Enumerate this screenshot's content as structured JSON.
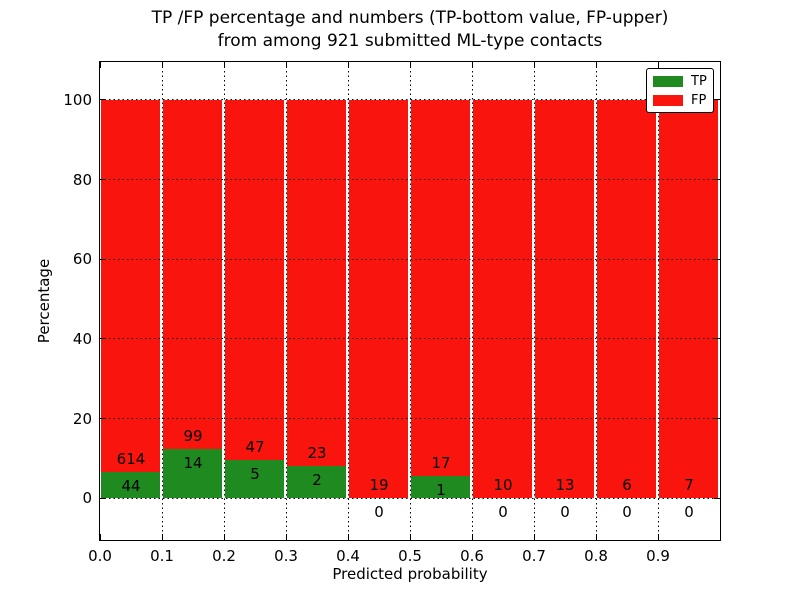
{
  "title": {
    "line1": "TP /FP percentage and numbers (TP-bottom value, FP-upper)",
    "line2": "from among 921 submitted ML-type contacts"
  },
  "chart_data": {
    "type": "bar",
    "stacked": true,
    "normalized_to_percent": true,
    "title": "TP /FP percentage and numbers (TP-bottom value, FP-upper) from among 921 submitted ML-type contacts",
    "xlabel": "Predicted probability",
    "ylabel": "Percentage",
    "total_contacts": 921,
    "bin_width": 0.1,
    "bin_starts": [
      0.0,
      0.1,
      0.2,
      0.3,
      0.4,
      0.5,
      0.6,
      0.7,
      0.8,
      0.9
    ],
    "series": [
      {
        "name": "TP",
        "color": "#1f8a1f",
        "values": [
          44,
          14,
          5,
          2,
          0,
          1,
          0,
          0,
          0,
          0
        ]
      },
      {
        "name": "FP",
        "color": "#fa140e",
        "values": [
          614,
          99,
          47,
          23,
          19,
          17,
          10,
          13,
          6,
          7
        ]
      }
    ],
    "bar_label_note": "TP count printed low in each bar, FP count printed above it",
    "xticks": [
      "0.0",
      "0.1",
      "0.2",
      "0.3",
      "0.4",
      "0.5",
      "0.6",
      "0.7",
      "0.8",
      "0.9"
    ],
    "yticks": [
      "0",
      "20",
      "40",
      "60",
      "80",
      "100"
    ],
    "xlim": [
      0.0,
      1.0
    ],
    "ylim": [
      -10.5,
      109.5
    ],
    "grid": "dotted black at all x and y ticks",
    "legend": {
      "position": "upper right",
      "entries": [
        "TP",
        "FP"
      ]
    }
  }
}
